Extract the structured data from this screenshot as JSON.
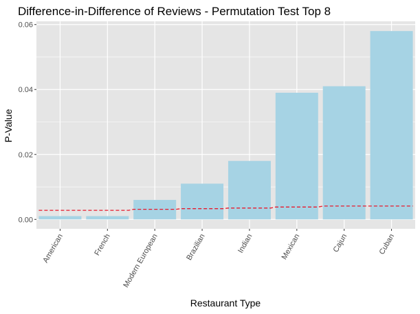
{
  "chart_data": {
    "type": "bar",
    "title": "Difference-in-Difference of Reviews - Permutation Test Top 8",
    "xlabel": "Restaurant Type",
    "ylabel": "P-Value",
    "categories": [
      "American",
      "French",
      "Modern European",
      "Brazilian",
      "Indian",
      "Mexican",
      "Cajun",
      "Cuban"
    ],
    "series": [
      {
        "values": [
          0.001,
          0.001,
          0.006,
          0.011,
          0.018,
          0.039,
          0.041,
          0.058
        ],
        "color": "#a6d3e4",
        "mark": "bar"
      },
      {
        "values": [
          0.0028,
          0.0028,
          0.0031,
          0.0033,
          0.0035,
          0.0038,
          0.0041,
          0.0041
        ],
        "color": "#e8192c",
        "mark": "dashed-line"
      }
    ],
    "ylim": [
      -0.0029,
      0.061
    ],
    "yticks": [
      0.0,
      0.02,
      0.04,
      0.06
    ],
    "ytick_labels": [
      "0.00",
      "0.02",
      "0.04",
      "0.06"
    ],
    "grid": true,
    "legend": "none",
    "panel_background": "#e5e5e5",
    "grid_color": "#ffffff"
  }
}
